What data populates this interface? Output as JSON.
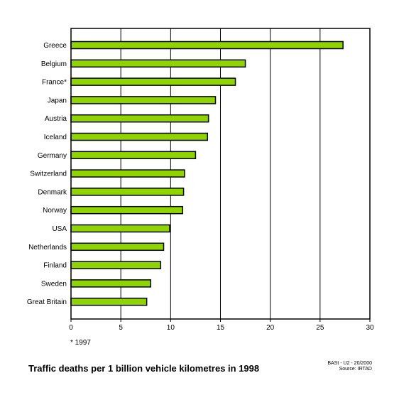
{
  "chart_data": {
    "type": "bar",
    "orientation": "horizontal",
    "title": "Traffic deaths per 1 billion vehicle kilometres in 1998",
    "categories": [
      "Greece",
      "Belgium",
      "France*",
      "Japan",
      "Austria",
      "Iceland",
      "Germany",
      "Switzerland",
      "Denmark",
      "Norway",
      "USA",
      "Netherlands",
      "Finland",
      "Sweden",
      "Great Britain"
    ],
    "values": [
      27.3,
      17.5,
      16.5,
      14.5,
      13.8,
      13.7,
      12.5,
      11.4,
      11.3,
      11.2,
      9.9,
      9.3,
      9.0,
      8.0,
      7.6
    ],
    "xlim": [
      0,
      30
    ],
    "xticks": [
      0,
      5,
      10,
      15,
      20,
      25,
      30
    ],
    "grid": true,
    "bar_color": "#8fd400",
    "bar_edge_color": "#000000",
    "footnote": "* 1997",
    "credit_line1": "BASt - U2 - 20/2000",
    "credit_line2": "Source: IRTAD"
  }
}
